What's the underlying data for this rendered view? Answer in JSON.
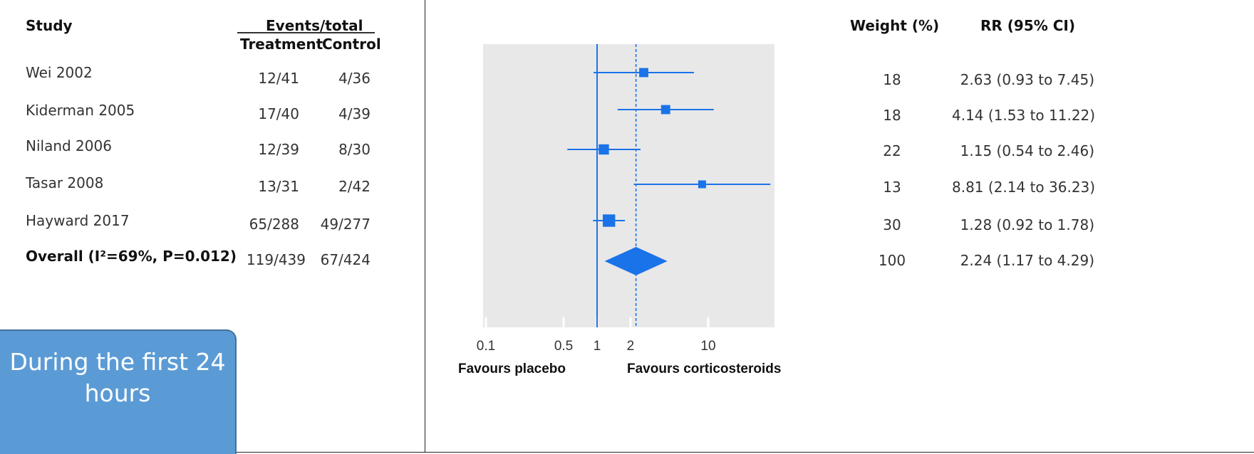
{
  "header": {
    "study": "Study",
    "events_total": "Events/total",
    "treatment": "Treatment",
    "control": "Control",
    "weight": "Weight (%)",
    "rr": "RR (95% CI)"
  },
  "rows": [
    {
      "study": "Wei 2002",
      "treatment": "12/41",
      "control": "4/36",
      "weight": "18",
      "rr_text": "2.63 (0.93 to 7.45)"
    },
    {
      "study": "Kiderman 2005",
      "treatment": "17/40",
      "control": "4/39",
      "weight": "18",
      "rr_text": "4.14 (1.53 to 11.22)"
    },
    {
      "study": "Niland 2006",
      "treatment": "12/39",
      "control": "8/30",
      "weight": "22",
      "rr_text": "1.15 (0.54 to 2.46)"
    },
    {
      "study": "Tasar 2008",
      "treatment": "13/31",
      "control": "2/42",
      "weight": "13",
      "rr_text": "8.81 (2.14 to 36.23)"
    },
    {
      "study": "Hayward 2017",
      "treatment": "65/288",
      "control": "49/277",
      "weight": "30",
      "rr_text": "1.28 (0.92 to 1.78)"
    }
  ],
  "overall": {
    "study": "Overall (I²=69%, P=0.012)",
    "treatment": "119/439",
    "control": "67/424",
    "weight": "100",
    "rr_text": "2.24 (1.17 to 4.29)"
  },
  "axis": {
    "favours_left": "Favours placebo",
    "favours_right": "Favours corticosteroids"
  },
  "caption": "During the first 24 hours",
  "colors": {
    "marker": "#1a73e8",
    "panel_bg": "#e8e8e8"
  },
  "chart_data": {
    "type": "forest",
    "scale": "log",
    "xlim": [
      0.1,
      40
    ],
    "ticks": [
      0.1,
      0.5,
      1,
      2,
      10
    ],
    "tick_labels": [
      "0.1",
      "0.5",
      "1",
      "2",
      "10"
    ],
    "reference_line": 1,
    "pooled_line": 2.24,
    "studies": [
      {
        "name": "Wei 2002",
        "rr": 2.63,
        "lo": 0.93,
        "hi": 7.45,
        "weight": 18
      },
      {
        "name": "Kiderman 2005",
        "rr": 4.14,
        "lo": 1.53,
        "hi": 11.22,
        "weight": 18
      },
      {
        "name": "Niland 2006",
        "rr": 1.15,
        "lo": 0.54,
        "hi": 2.46,
        "weight": 22
      },
      {
        "name": "Tasar 2008",
        "rr": 8.81,
        "lo": 2.14,
        "hi": 36.23,
        "weight": 13
      },
      {
        "name": "Hayward 2017",
        "rr": 1.28,
        "lo": 0.92,
        "hi": 1.78,
        "weight": 30
      }
    ],
    "overall": {
      "rr": 2.24,
      "lo": 1.17,
      "hi": 4.29
    }
  }
}
